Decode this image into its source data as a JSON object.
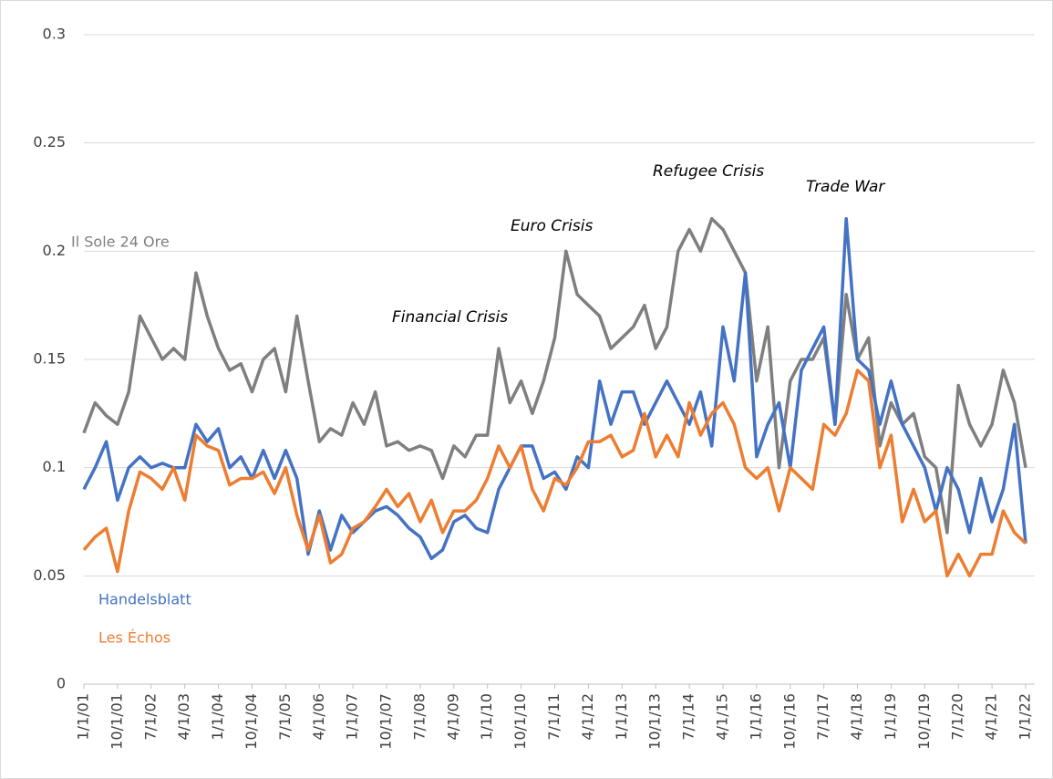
{
  "chart_data": {
    "type": "line",
    "categories": [
      "1/1/01",
      null,
      null,
      "10/1/01",
      null,
      null,
      "7/1/02",
      null,
      null,
      "4/1/03",
      null,
      null,
      "1/1/04",
      null,
      null,
      "10/1/04",
      null,
      null,
      "7/1/05",
      null,
      null,
      "4/1/06",
      null,
      null,
      "1/1/07",
      null,
      null,
      "10/1/07",
      null,
      null,
      "7/1/08",
      null,
      null,
      "4/1/09",
      null,
      null,
      "1/1/10",
      null,
      null,
      "10/1/10",
      null,
      null,
      "7/1/11",
      null,
      null,
      "4/1/12",
      null,
      null,
      "1/1/13",
      null,
      null,
      "10/1/13",
      null,
      null,
      "7/1/14",
      null,
      null,
      "4/1/15",
      null,
      null,
      "1/1/16",
      null,
      null,
      "10/1/16",
      null,
      null,
      "7/1/17",
      null,
      null,
      "4/1/18",
      null,
      null,
      "1/1/19",
      null,
      null,
      "10/1/19",
      null,
      null,
      "7/1/20",
      null,
      null,
      "4/1/21",
      null,
      null,
      "1/1/22"
    ],
    "series": [
      {
        "name": "Il Sole 24 Ore",
        "color": "#7f7f7f",
        "values": [
          0.116,
          0.13,
          0.124,
          0.12,
          0.135,
          0.17,
          0.16,
          0.15,
          0.155,
          0.15,
          0.19,
          0.17,
          0.155,
          0.145,
          0.148,
          0.135,
          0.15,
          0.155,
          0.135,
          0.17,
          0.14,
          0.112,
          0.118,
          0.115,
          0.13,
          0.12,
          0.135,
          0.11,
          0.112,
          0.108,
          0.11,
          0.108,
          0.095,
          0.11,
          0.105,
          0.115,
          0.115,
          0.155,
          0.13,
          0.14,
          0.125,
          0.14,
          0.16,
          0.2,
          0.18,
          0.175,
          0.17,
          0.155,
          0.16,
          0.165,
          0.175,
          0.155,
          0.165,
          0.2,
          0.21,
          0.2,
          0.215,
          0.21,
          0.2,
          0.19,
          0.14,
          0.165,
          0.1,
          0.14,
          0.15,
          0.15,
          0.16,
          0.12,
          0.18,
          0.15,
          0.16,
          0.11,
          0.13,
          0.12,
          0.125,
          0.105,
          0.1,
          0.07,
          0.138,
          0.12,
          0.11,
          0.12,
          0.145,
          0.13,
          0.1
        ]
      },
      {
        "name": "Handelsblatt",
        "color": "#4472c4",
        "values": [
          0.09,
          0.1,
          0.112,
          0.085,
          0.1,
          0.105,
          0.1,
          0.102,
          0.1,
          0.1,
          0.12,
          0.112,
          0.118,
          0.1,
          0.105,
          0.095,
          0.108,
          0.095,
          0.108,
          0.095,
          0.06,
          0.08,
          0.062,
          0.078,
          0.07,
          0.075,
          0.08,
          0.082,
          0.078,
          0.072,
          0.068,
          0.058,
          0.062,
          0.075,
          0.078,
          0.072,
          0.07,
          0.09,
          0.1,
          0.11,
          0.11,
          0.095,
          0.098,
          0.09,
          0.105,
          0.1,
          0.14,
          0.12,
          0.135,
          0.135,
          0.12,
          0.13,
          0.14,
          0.13,
          0.12,
          0.135,
          0.11,
          0.165,
          0.14,
          0.19,
          0.105,
          0.12,
          0.13,
          0.1,
          0.145,
          0.155,
          0.165,
          0.12,
          0.215,
          0.15,
          0.145,
          0.12,
          0.14,
          0.12,
          0.11,
          0.1,
          0.08,
          0.1,
          0.09,
          0.07,
          0.095,
          0.075,
          0.09,
          0.12,
          0.065
        ]
      },
      {
        "name": "Les Échos",
        "color": "#ed7d31",
        "values": [
          0.062,
          0.068,
          0.072,
          0.052,
          0.08,
          0.098,
          0.095,
          0.09,
          0.1,
          0.085,
          0.115,
          0.11,
          0.108,
          0.092,
          0.095,
          0.095,
          0.098,
          0.088,
          0.1,
          0.078,
          0.062,
          0.078,
          0.056,
          0.06,
          0.072,
          0.075,
          0.082,
          0.09,
          0.082,
          0.088,
          0.075,
          0.085,
          0.07,
          0.08,
          0.08,
          0.085,
          0.095,
          0.11,
          0.1,
          0.11,
          0.09,
          0.08,
          0.095,
          0.092,
          0.1,
          0.112,
          0.112,
          0.115,
          0.105,
          0.108,
          0.125,
          0.105,
          0.115,
          0.105,
          0.13,
          0.115,
          0.125,
          0.13,
          0.12,
          0.1,
          0.095,
          0.1,
          0.08,
          0.1,
          0.095,
          0.09,
          0.12,
          0.115,
          0.125,
          0.145,
          0.14,
          0.1,
          0.115,
          0.075,
          0.09,
          0.075,
          0.08,
          0.05,
          0.06,
          0.05,
          0.06,
          0.06,
          0.08,
          0.07,
          0.065
        ]
      }
    ],
    "annotations": [
      "Financial Crisis",
      "Euro Crisis",
      "Refugee Crisis",
      "Trade War"
    ],
    "ylim": [
      0,
      0.3
    ],
    "yticks": [
      0,
      0.05,
      0.1,
      0.15,
      0.2,
      0.25,
      0.3
    ],
    "grid": true
  }
}
